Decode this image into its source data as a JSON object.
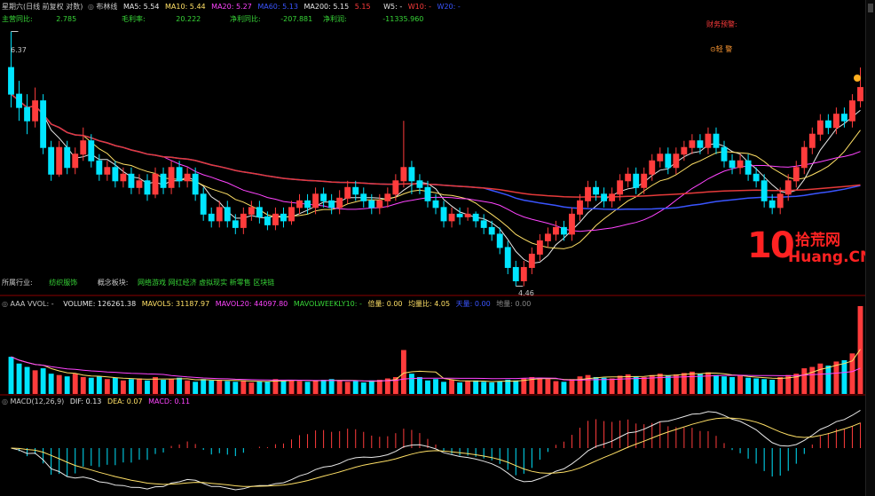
{
  "colors": {
    "up": "#ff3c3c",
    "down": "#00e5ff",
    "ma5": "#e8e8e8",
    "ma10": "#ffe066",
    "ma20": "#ff44ff",
    "ma60": "#3a55ff",
    "ma200": "#e63a3a",
    "grid": "#8b0000",
    "yellow": "#ffd700",
    "green": "#37d437",
    "orange": "#ff9933"
  },
  "header": {
    "day": "星期六(日线 前复权 对数)",
    "indicator": "布林线",
    "ma5": "MA5: 5.54",
    "ma10": "MA10: 5.44",
    "ma20": "MA20: 5.27",
    "ma60": "MA60: 5.13",
    "ma200": "MA200: 5.15",
    "ma_extra": "5.15",
    "w5": "W5: -",
    "w10": "W10: -",
    "w20": "W20: -",
    "row2": [
      {
        "label": "主营同比:",
        "value": "2.785"
      },
      {
        "label": "毛利率:",
        "value": "20.222"
      },
      {
        "label": "净利同比:",
        "value": "-207.881"
      },
      {
        "label": "净利润:",
        "value": "-11335.960"
      }
    ],
    "warn": "财务预警:",
    "alert": "⊙轻 警"
  },
  "industry": {
    "label": "所属行业:",
    "value": "纺织服饰",
    "concept_label": "概念板块:",
    "concept_value": "网络游戏 网红经济 虚拟现实 新零售 区块链"
  },
  "volume_header": {
    "name": "AAA VVOL:",
    "sep": "-",
    "volume": "VOLUME: 126261.38",
    "mavol5": "MAVOL5: 31187.97",
    "mavol20": "MAVOL20: 44097.80",
    "mavolw": "MAVOLWEEKLY10: -",
    "ratio": "倍量: 0.00",
    "avgratio": "均量比: 4.05",
    "sky": "天量: 0.00",
    "ground": "地量: 0.00"
  },
  "macd_header": {
    "name": "MACD(12,26,9)",
    "dif": "DIF: 0.13",
    "dea": "DEA: 0.07",
    "macd": "MACD: 0.11"
  },
  "chart_data": {
    "type": "candlestick",
    "price_annotations": {
      "high": "6.37",
      "low": "4.46"
    },
    "watermark": {
      "number": "10",
      "cn": "拾荒网",
      "en": "Huang.CN"
    },
    "candles": [
      [
        6.1,
        5.9,
        6.37,
        5.8
      ],
      [
        5.9,
        5.8,
        6.0,
        5.7
      ],
      [
        5.8,
        5.7,
        5.9,
        5.6
      ],
      [
        5.7,
        5.85,
        5.95,
        5.65
      ],
      [
        5.85,
        5.5,
        5.9,
        5.45
      ],
      [
        5.5,
        5.3,
        5.55,
        5.25
      ],
      [
        5.3,
        5.5,
        5.55,
        5.28
      ],
      [
        5.5,
        5.35,
        5.55,
        5.3
      ],
      [
        5.35,
        5.45,
        5.5,
        5.3
      ],
      [
        5.45,
        5.55,
        5.65,
        5.4
      ],
      [
        5.55,
        5.4,
        5.6,
        5.35
      ],
      [
        5.4,
        5.3,
        5.45,
        5.25
      ],
      [
        5.3,
        5.35,
        5.4,
        5.25
      ],
      [
        5.35,
        5.25,
        5.4,
        5.2
      ],
      [
        5.25,
        5.3,
        5.35,
        5.2
      ],
      [
        5.3,
        5.2,
        5.35,
        5.15
      ],
      [
        5.2,
        5.25,
        5.3,
        5.15
      ],
      [
        5.25,
        5.15,
        5.3,
        5.1
      ],
      [
        5.15,
        5.3,
        5.35,
        5.12
      ],
      [
        5.3,
        5.2,
        5.35,
        5.15
      ],
      [
        5.2,
        5.35,
        5.4,
        5.15
      ],
      [
        5.35,
        5.25,
        5.4,
        5.2
      ],
      [
        5.25,
        5.3,
        5.35,
        5.2
      ],
      [
        5.3,
        5.15,
        5.35,
        5.1
      ],
      [
        5.15,
        5.0,
        5.2,
        4.95
      ],
      [
        5.0,
        4.95,
        5.05,
        4.9
      ],
      [
        4.95,
        5.05,
        5.1,
        4.9
      ],
      [
        5.05,
        4.95,
        5.1,
        4.9
      ],
      [
        4.95,
        4.9,
        5.0,
        4.85
      ],
      [
        4.9,
        5.0,
        5.05,
        4.85
      ],
      [
        5.0,
        5.05,
        5.1,
        4.95
      ],
      [
        5.05,
        4.98,
        5.1,
        4.93
      ],
      [
        4.98,
        4.92,
        5.02,
        4.88
      ],
      [
        4.92,
        5.0,
        5.05,
        4.88
      ],
      [
        5.0,
        4.95,
        5.05,
        4.9
      ],
      [
        4.95,
        5.05,
        5.1,
        4.92
      ],
      [
        5.05,
        5.1,
        5.15,
        5.0
      ],
      [
        5.1,
        5.05,
        5.15,
        5.0
      ],
      [
        5.05,
        5.15,
        5.2,
        5.0
      ],
      [
        5.15,
        5.1,
        5.2,
        5.05
      ],
      [
        5.1,
        5.05,
        5.15,
        5.0
      ],
      [
        5.05,
        5.12,
        5.18,
        5.0
      ],
      [
        5.12,
        5.2,
        5.25,
        5.08
      ],
      [
        5.2,
        5.15,
        5.25,
        5.1
      ],
      [
        5.15,
        5.1,
        5.2,
        5.05
      ],
      [
        5.1,
        5.05,
        5.15,
        5.0
      ],
      [
        5.05,
        5.1,
        5.15,
        5.0
      ],
      [
        5.1,
        5.15,
        5.2,
        5.05
      ],
      [
        5.15,
        5.25,
        5.3,
        5.1
      ],
      [
        5.25,
        5.35,
        5.7,
        5.2
      ],
      [
        5.35,
        5.25,
        5.4,
        5.15
      ],
      [
        5.25,
        5.2,
        5.3,
        5.15
      ],
      [
        5.2,
        5.1,
        5.25,
        5.05
      ],
      [
        5.1,
        5.05,
        5.15,
        5.0
      ],
      [
        5.05,
        4.95,
        5.1,
        4.9
      ],
      [
        4.95,
        5.0,
        5.05,
        4.9
      ],
      [
        5.0,
        4.98,
        5.05,
        4.92
      ],
      [
        4.98,
        5.0,
        5.05,
        4.95
      ],
      [
        5.0,
        4.95,
        5.02,
        4.9
      ],
      [
        4.95,
        4.9,
        5.0,
        4.85
      ],
      [
        4.9,
        4.85,
        4.95,
        4.8
      ],
      [
        4.85,
        4.75,
        4.9,
        4.7
      ],
      [
        4.75,
        4.6,
        4.8,
        4.55
      ],
      [
        4.6,
        4.5,
        4.65,
        4.46
      ],
      [
        4.5,
        4.6,
        4.65,
        4.46
      ],
      [
        4.6,
        4.7,
        4.75,
        4.55
      ],
      [
        4.7,
        4.8,
        4.85,
        4.65
      ],
      [
        4.8,
        4.85,
        4.9,
        4.75
      ],
      [
        4.85,
        4.9,
        4.95,
        4.8
      ],
      [
        4.9,
        4.85,
        4.95,
        4.8
      ],
      [
        4.85,
        5.0,
        5.05,
        4.8
      ],
      [
        5.0,
        5.1,
        5.15,
        4.95
      ],
      [
        5.1,
        5.2,
        5.25,
        5.05
      ],
      [
        5.2,
        5.15,
        5.25,
        5.1
      ],
      [
        5.15,
        5.1,
        5.2,
        5.05
      ],
      [
        5.1,
        5.15,
        5.2,
        5.05
      ],
      [
        5.15,
        5.25,
        5.3,
        5.1
      ],
      [
        5.25,
        5.3,
        5.35,
        5.2
      ],
      [
        5.3,
        5.2,
        5.35,
        5.15
      ],
      [
        5.2,
        5.3,
        5.35,
        5.15
      ],
      [
        5.3,
        5.4,
        5.45,
        5.25
      ],
      [
        5.4,
        5.45,
        5.5,
        5.35
      ],
      [
        5.45,
        5.35,
        5.5,
        5.3
      ],
      [
        5.35,
        5.45,
        5.5,
        5.3
      ],
      [
        5.45,
        5.5,
        5.55,
        5.4
      ],
      [
        5.5,
        5.55,
        5.6,
        5.45
      ],
      [
        5.55,
        5.5,
        5.6,
        5.45
      ],
      [
        5.5,
        5.6,
        5.65,
        5.45
      ],
      [
        5.6,
        5.5,
        5.65,
        5.45
      ],
      [
        5.5,
        5.4,
        5.55,
        5.35
      ],
      [
        5.4,
        5.35,
        5.45,
        5.3
      ],
      [
        5.35,
        5.4,
        5.45,
        5.3
      ],
      [
        5.4,
        5.3,
        5.45,
        5.25
      ],
      [
        5.3,
        5.25,
        5.35,
        5.2
      ],
      [
        5.25,
        5.1,
        5.3,
        5.05
      ],
      [
        5.1,
        5.05,
        5.15,
        5.0
      ],
      [
        5.05,
        5.15,
        5.2,
        5.0
      ],
      [
        5.15,
        5.25,
        5.3,
        5.1
      ],
      [
        5.25,
        5.35,
        5.4,
        5.2
      ],
      [
        5.35,
        5.5,
        5.55,
        5.3
      ],
      [
        5.5,
        5.6,
        5.65,
        5.45
      ],
      [
        5.6,
        5.7,
        5.75,
        5.55
      ],
      [
        5.7,
        5.65,
        5.75,
        5.6
      ],
      [
        5.65,
        5.75,
        5.8,
        5.6
      ],
      [
        5.75,
        5.7,
        5.8,
        5.65
      ],
      [
        5.7,
        5.85,
        5.9,
        5.65
      ],
      [
        5.85,
        5.95,
        6.1,
        5.8
      ]
    ],
    "volumes": [
      55,
      45,
      40,
      35,
      38,
      30,
      28,
      26,
      30,
      25,
      24,
      26,
      22,
      24,
      20,
      22,
      23,
      20,
      25,
      21,
      22,
      24,
      20,
      18,
      22,
      20,
      21,
      19,
      18,
      20,
      17,
      19,
      18,
      22,
      20,
      21,
      19,
      18,
      20,
      21,
      22,
      20,
      18,
      19,
      17,
      20,
      21,
      23,
      25,
      65,
      30,
      25,
      20,
      22,
      18,
      21,
      17,
      19,
      20,
      18,
      17,
      19,
      21,
      20,
      23,
      25,
      24,
      22,
      19,
      18,
      22,
      26,
      28,
      25,
      24,
      23,
      27,
      29,
      26,
      25,
      28,
      30,
      27,
      29,
      31,
      33,
      30,
      32,
      28,
      26,
      25,
      27,
      24,
      23,
      22,
      21,
      25,
      28,
      30,
      38,
      40,
      45,
      42,
      48,
      50,
      60,
      130
    ]
  }
}
